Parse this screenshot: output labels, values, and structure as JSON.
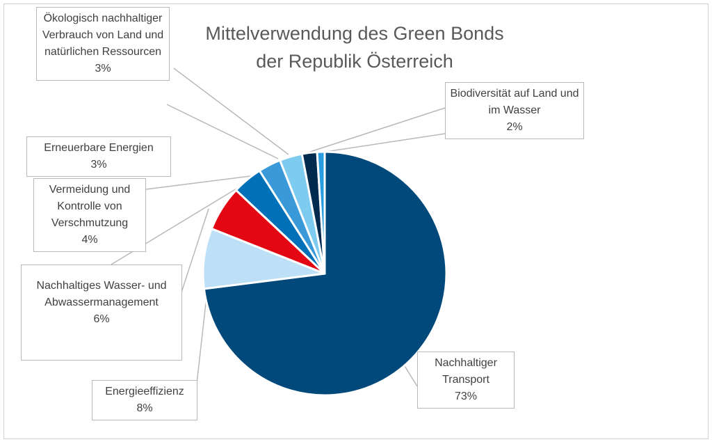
{
  "chart_data": {
    "type": "pie",
    "title": "Mittelverwendung des Green Bonds der Republik Österreich",
    "title_lines": [
      "Mittelverwendung des Green Bonds",
      "der Republik Österreich"
    ],
    "start": "top",
    "direction": "clockwise",
    "slices": [
      {
        "label": "Nachhaltiger Transport",
        "value": 73,
        "value_label": "73%",
        "color": "#00497a"
      },
      {
        "label": "Energieeffizienz",
        "value": 8,
        "value_label": "8%",
        "color": "#bde0f7"
      },
      {
        "label": "Nachhaltiges Wasser- und Abwassermanagement",
        "value": 6,
        "value_label": "6%",
        "color": "#e30613"
      },
      {
        "label": "Vermeidung und Kontrolle von Verschmutzung",
        "value": 4,
        "value_label": "4%",
        "color": "#0070b8"
      },
      {
        "label": "Erneuerbare Energien",
        "value": 3,
        "value_label": "3%",
        "color": "#3a9ad9"
      },
      {
        "label": "Ökologisch nachhaltiger Verbrauch von Land und natürlichen Ressourcen",
        "value": 3,
        "value_label": "3%",
        "color": "#7ecbf0"
      },
      {
        "label": "Biodiversität auf Land und im Wasser",
        "value": 2,
        "value_label": "2%",
        "color": "#002b4f"
      },
      {
        "label": "",
        "value": 1,
        "value_label": "",
        "color": "#2a9ce0"
      }
    ]
  }
}
